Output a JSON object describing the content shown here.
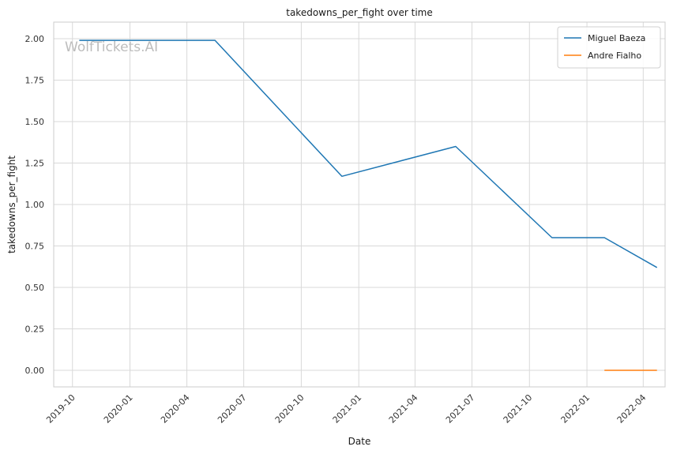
{
  "watermark": "WolfTickets.AI",
  "chart_data": {
    "type": "line",
    "title": "takedowns_per_fight over time",
    "xlabel": "Date",
    "ylabel": "takedowns_per_fight",
    "x_ticks": [
      "2019-10",
      "2020-01",
      "2020-04",
      "2020-07",
      "2020-10",
      "2021-01",
      "2021-04",
      "2021-07",
      "2021-10",
      "2022-01",
      "2022-04"
    ],
    "y_ticks": [
      "0.00",
      "0.25",
      "0.50",
      "0.75",
      "1.00",
      "1.25",
      "1.50",
      "1.75",
      "2.00"
    ],
    "ylim": [
      -0.1,
      2.1
    ],
    "xlim": [
      "2019-09-01",
      "2022-05-06"
    ],
    "grid": true,
    "legend_position": "top-right",
    "series": [
      {
        "name": "Miguel Baeza",
        "color": "#1f77b4",
        "points": [
          {
            "x": "2019-10-12",
            "y": 1.99
          },
          {
            "x": "2020-05-16",
            "y": 1.99
          },
          {
            "x": "2020-12-05",
            "y": 1.17
          },
          {
            "x": "2021-06-05",
            "y": 1.35
          },
          {
            "x": "2021-11-06",
            "y": 0.8
          },
          {
            "x": "2022-01-29",
            "y": 0.8
          },
          {
            "x": "2022-04-23",
            "y": 0.62
          }
        ]
      },
      {
        "name": "Andre Fialho",
        "color": "#ff7f0e",
        "points": [
          {
            "x": "2022-01-29",
            "y": 0.0
          },
          {
            "x": "2022-04-23",
            "y": 0.0
          }
        ]
      }
    ]
  }
}
